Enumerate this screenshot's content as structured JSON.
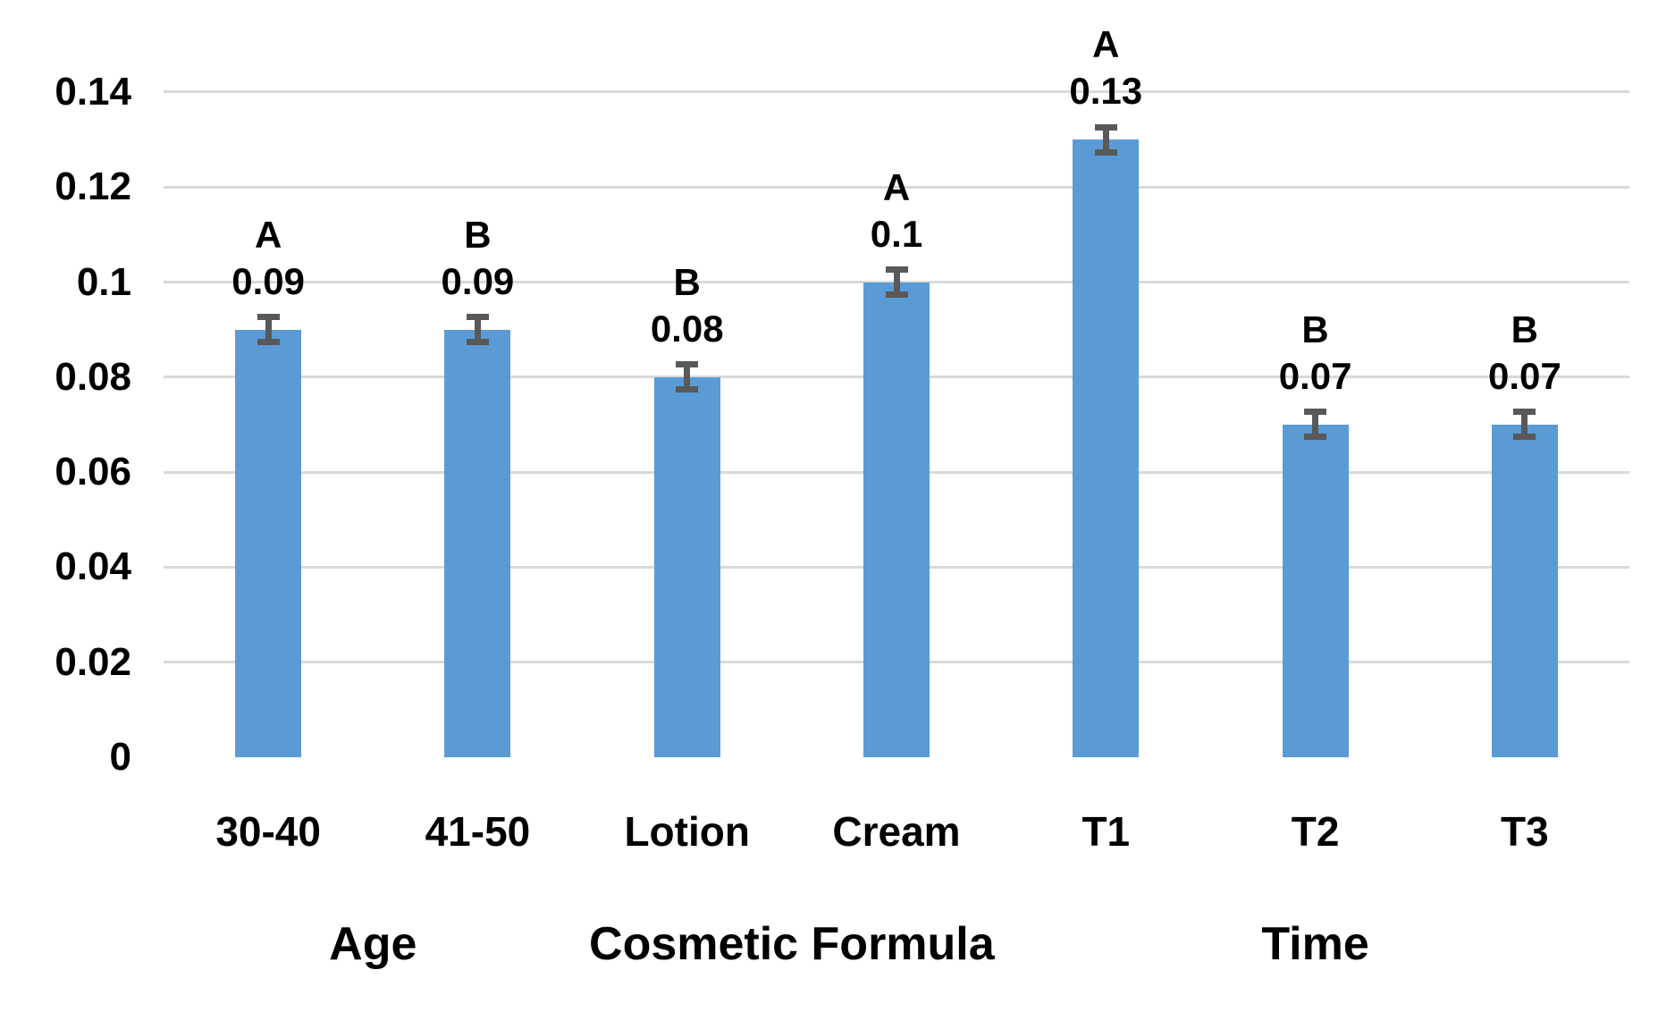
{
  "chart_data": {
    "type": "bar",
    "title": "",
    "categories": [
      "30-40",
      "41-50",
      "Lotion",
      "Cream",
      "T1",
      "T2",
      "T3"
    ],
    "values": [
      0.09,
      0.09,
      0.08,
      0.1,
      0.13,
      0.07,
      0.07
    ],
    "value_labels": [
      "0.09",
      "0.09",
      "0.08",
      "0.1",
      "0.13",
      "0.07",
      "0.07"
    ],
    "significance_letters": [
      "A",
      "B",
      "B",
      "A",
      "A",
      "B",
      "B"
    ],
    "error_bar_value": 0.003,
    "groups": [
      {
        "label": "Age",
        "span": [
          0,
          1
        ]
      },
      {
        "label": "Cosmetic Formula",
        "span": [
          2,
          3
        ]
      },
      {
        "label": "Time",
        "span": [
          4,
          6
        ]
      }
    ],
    "y_axis": {
      "tick_labels": [
        "0.14",
        "0.12",
        "0.1",
        "0.08",
        "0.06",
        "0.04",
        "0.02",
        "0"
      ],
      "tick_values": [
        0.14,
        0.12,
        0.1,
        0.08,
        0.06,
        0.04,
        0.02,
        0
      ],
      "range": [
        0,
        0.15
      ]
    },
    "xlabel": "",
    "ylabel": "",
    "grid": true,
    "legend": "none",
    "colors": {
      "bar": "#5B9BD5",
      "error_bar": "#595959",
      "gridline": "#D9D9D9",
      "text": "#000000",
      "background": "#FFFFFF"
    }
  }
}
